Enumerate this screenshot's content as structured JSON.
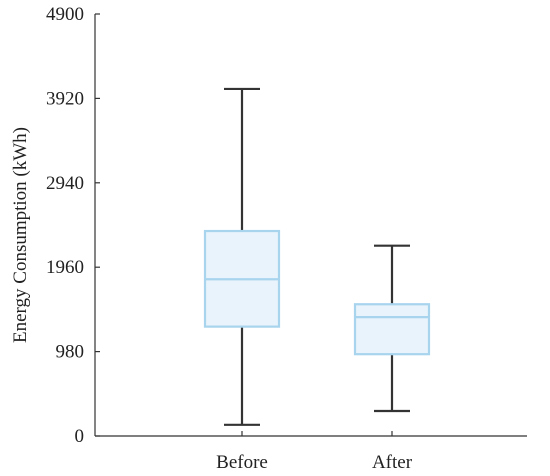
{
  "chart_data": {
    "type": "box",
    "title": "",
    "xlabel": "",
    "ylabel": "Energy Consumption (kWh)",
    "ylim": [
      0,
      4900
    ],
    "yticks": [
      0,
      980,
      1960,
      2940,
      3920,
      4900
    ],
    "grid": false,
    "categories": [
      "Before",
      "After"
    ],
    "boxes": [
      {
        "category": "Before",
        "min": 130,
        "q1": 1270,
        "median": 1820,
        "q3": 2380,
        "max": 4030
      },
      {
        "category": "After",
        "min": 290,
        "q1": 950,
        "median": 1380,
        "q3": 1530,
        "max": 2210
      }
    ],
    "colors": {
      "box_fill": "#e8f3fc",
      "box_stroke": "#a8d4ee",
      "whisker": "#333333"
    }
  }
}
